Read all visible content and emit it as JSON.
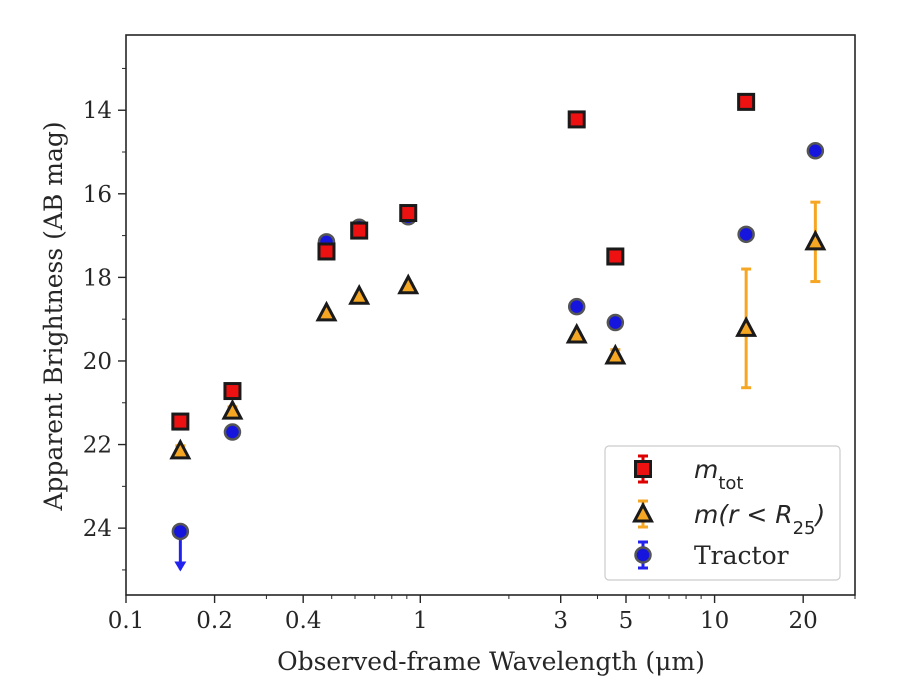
{
  "chart_data": {
    "type": "scatter",
    "xlabel": "Observed-frame Wavelength (μm)",
    "ylabel": "Apparent Brightness (AB mag)",
    "x_scale": "log",
    "xlim": [
      0.1,
      30
    ],
    "ylim": [
      25.6,
      12.2
    ],
    "y_inverted": true,
    "x_ticks": [
      {
        "value": 0.1,
        "label": "0.1"
      },
      {
        "value": 0.2,
        "label": "0.2"
      },
      {
        "value": 0.4,
        "label": "0.4"
      },
      {
        "value": 1,
        "label": "1"
      },
      {
        "value": 3,
        "label": "3"
      },
      {
        "value": 5,
        "label": "5"
      },
      {
        "value": 10,
        "label": "10"
      },
      {
        "value": 20,
        "label": "20"
      }
    ],
    "y_ticks": [
      {
        "value": 14,
        "label": "14"
      },
      {
        "value": 16,
        "label": "16"
      },
      {
        "value": 18,
        "label": "18"
      },
      {
        "value": 20,
        "label": "20"
      },
      {
        "value": 22,
        "label": "22"
      },
      {
        "value": 24,
        "label": "24"
      }
    ],
    "grid": false,
    "legend_position": "bottom-right",
    "series": [
      {
        "name": "m_tot",
        "label_base": "m",
        "label_sub": "tot",
        "marker": "square",
        "fill": "#ee1111",
        "edge": "#1a1a1a",
        "errcolor": "#dd0000",
        "points": [
          {
            "x": 0.153,
            "y": 21.45,
            "err": 0.08
          },
          {
            "x": 0.23,
            "y": 20.72,
            "err": 0.06
          },
          {
            "x": 0.48,
            "y": 17.38,
            "err": 0.05
          },
          {
            "x": 0.62,
            "y": 16.88,
            "err": 0.05
          },
          {
            "x": 0.91,
            "y": 16.46,
            "err": 0.05
          },
          {
            "x": 3.4,
            "y": 14.22,
            "err": 0.05
          },
          {
            "x": 4.6,
            "y": 17.5,
            "err": 0.05
          },
          {
            "x": 12.8,
            "y": 13.8,
            "err": 0.05
          }
        ]
      },
      {
        "name": "m(r < R_25)",
        "label_base": "m(r < R",
        "label_sub": "25",
        "label_tail": ")",
        "marker": "triangle",
        "fill": "#f5a623",
        "edge": "#1a1a1a",
        "errcolor": "#f5a623",
        "points": [
          {
            "x": 0.153,
            "y": 22.15,
            "err": 0.12
          },
          {
            "x": 0.23,
            "y": 21.2,
            "err": 0.1
          },
          {
            "x": 0.48,
            "y": 18.85,
            "err": 0.05
          },
          {
            "x": 0.62,
            "y": 18.45,
            "err": 0.05
          },
          {
            "x": 0.91,
            "y": 18.2,
            "err": 0.05
          },
          {
            "x": 3.4,
            "y": 19.38,
            "err": 0.05
          },
          {
            "x": 4.6,
            "y": 19.88,
            "err": 0.15
          },
          {
            "x": 12.8,
            "y": 19.22,
            "err": 1.42
          },
          {
            "x": 22.0,
            "y": 17.15,
            "err": 0.95
          }
        ]
      },
      {
        "name": "Tractor",
        "label_base": "Tractor",
        "marker": "circle",
        "fill": "#1515dd",
        "edge": "#555555",
        "errcolor": "#2222ee",
        "points": [
          {
            "x": 0.153,
            "y": 24.08,
            "err": 0,
            "upper_limit": true
          },
          {
            "x": 0.23,
            "y": 21.7,
            "err": 0.05
          },
          {
            "x": 0.48,
            "y": 17.15,
            "err": 0.05
          },
          {
            "x": 0.62,
            "y": 16.8,
            "err": 0.05
          },
          {
            "x": 0.91,
            "y": 16.55,
            "err": 0.05
          },
          {
            "x": 3.4,
            "y": 18.7,
            "err": 0.05
          },
          {
            "x": 4.6,
            "y": 19.08,
            "err": 0.05
          },
          {
            "x": 12.8,
            "y": 16.97,
            "err": 0.05
          },
          {
            "x": 22.0,
            "y": 14.97,
            "err": 0.05
          }
        ]
      }
    ]
  }
}
